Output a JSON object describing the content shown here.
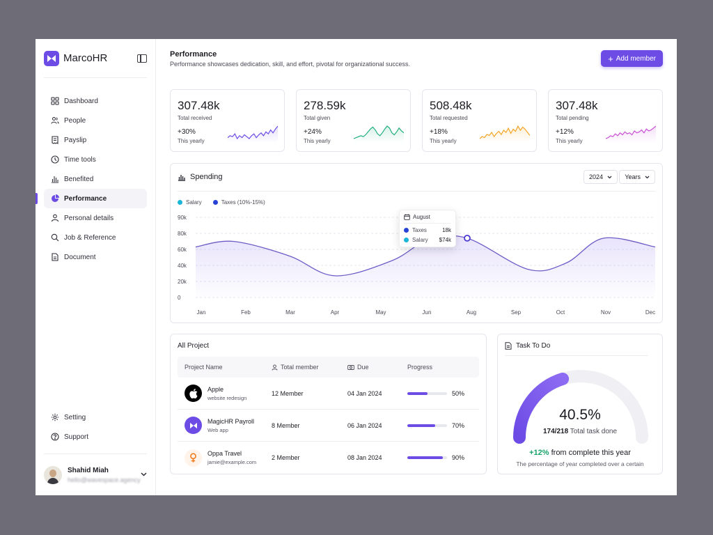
{
  "app": {
    "name": "MarcoHR"
  },
  "sidebar": {
    "items": [
      {
        "label": "Dashboard",
        "icon": "grid-icon"
      },
      {
        "label": "People",
        "icon": "people-icon"
      },
      {
        "label": "Payslip",
        "icon": "receipt-icon"
      },
      {
        "label": "Time tools",
        "icon": "clock-icon"
      },
      {
        "label": "Benefited",
        "icon": "bar-chart-icon"
      },
      {
        "label": "Performance",
        "icon": "pie-chart-icon",
        "active": true
      },
      {
        "label": "Personal details",
        "icon": "user-icon"
      },
      {
        "label": "Job & Reference",
        "icon": "search-icon"
      },
      {
        "label": "Document",
        "icon": "document-icon"
      }
    ],
    "bottom_items": [
      {
        "label": "Setting",
        "icon": "gear-icon"
      },
      {
        "label": "Support",
        "icon": "help-icon"
      }
    ],
    "user": {
      "name": "Shahid Miah",
      "email": "hello@wavespace.agency"
    }
  },
  "header": {
    "title": "Performance",
    "subtitle": "Performance showcases dedication, skill, and effort, pivotal for organizational success.",
    "add_button": "Add member"
  },
  "stats": [
    {
      "value": "307.48k",
      "label": "Total received",
      "change": "+30%",
      "period": "This yearly",
      "color": "#6d4ce6",
      "spark": [
        10,
        12,
        11,
        14,
        9,
        12,
        10,
        13,
        11,
        9,
        12,
        14,
        10,
        13,
        15,
        12,
        16,
        14,
        18,
        15,
        19,
        22
      ]
    },
    {
      "value": "278.59k",
      "label": "Total given",
      "change": "+24%",
      "period": "This yearly",
      "color": "#22b07d",
      "spark": [
        8,
        9,
        10,
        11,
        10,
        12,
        15,
        18,
        20,
        17,
        13,
        11,
        14,
        18,
        21,
        19,
        14,
        12,
        15,
        19,
        16,
        14
      ]
    },
    {
      "value": "508.48k",
      "label": "Total requested",
      "change": "+18%",
      "period": "This yearly",
      "color": "#f5a524",
      "spark": [
        9,
        11,
        10,
        13,
        12,
        15,
        11,
        14,
        16,
        13,
        17,
        15,
        19,
        14,
        18,
        16,
        21,
        17,
        20,
        18,
        15,
        12
      ]
    },
    {
      "value": "307.48k",
      "label": "Total pending",
      "change": "+12%",
      "period": "This yearly",
      "color": "#c94fd6",
      "spark": [
        9,
        10,
        12,
        11,
        14,
        12,
        15,
        13,
        16,
        14,
        15,
        13,
        17,
        15,
        16,
        18,
        15,
        19,
        17,
        18,
        20,
        22
      ]
    }
  ],
  "spending": {
    "title": "Spending",
    "year_select": "2024",
    "range_select": "Years",
    "legend": [
      {
        "name": "Salary",
        "color": "#1bb5d8"
      },
      {
        "name": "Taxes (10%-15%)",
        "color": "#2743d6"
      }
    ],
    "tooltip": {
      "month": "August",
      "rows": [
        {
          "name": "Taxes",
          "value": "18k",
          "color": "#2743d6"
        },
        {
          "name": "Salary",
          "value": "$74k",
          "color": "#1bb5d8"
        }
      ]
    }
  },
  "chart_data": {
    "type": "area",
    "title": "Spending",
    "x": [
      "Jan",
      "Feb",
      "Mar",
      "Apr",
      "May",
      "Jun",
      "Aug",
      "Sep",
      "Oct",
      "Nov",
      "Dec"
    ],
    "y_ticks": [
      "0",
      "20k",
      "40k",
      "60k",
      "80k",
      "90k"
    ],
    "series": [
      {
        "name": "Salary",
        "values": [
          63000,
          70000,
          52000,
          27000,
          46000,
          72000,
          74000,
          35000,
          43000,
          74000,
          63000
        ]
      }
    ],
    "highlight": {
      "x": "Aug",
      "value": 74000
    },
    "grid": true,
    "legend_position": "top-left"
  },
  "projects": {
    "title": "All Project",
    "columns": [
      "Project Name",
      "Total member",
      "Due",
      "Progress"
    ],
    "rows": [
      {
        "name": "Apple",
        "sub": "website redesign",
        "members": "12 Member",
        "due": "04 Jan 2024",
        "progress": 50,
        "progress_label": "50%",
        "logo": "apple-icon"
      },
      {
        "name": "MagicHR Payroll",
        "sub": "Web app",
        "members": "8 Member",
        "due": "06 Jan 2024",
        "progress": 70,
        "progress_label": "70%",
        "logo": "magichr-icon"
      },
      {
        "name": "Oppa Travel",
        "sub": "jamie@example.com",
        "members": "2 Member",
        "due": "08 Jan 2024",
        "progress": 90,
        "progress_label": "90%",
        "logo": "pin-icon"
      }
    ]
  },
  "task": {
    "title": "Task To Do",
    "percent": "40.5%",
    "percent_value": 0.405,
    "done": "174/218",
    "done_label": "Total task done",
    "change": "+12%",
    "change_text": "from complete this year",
    "note": "The percentage of year completed over a certain"
  }
}
